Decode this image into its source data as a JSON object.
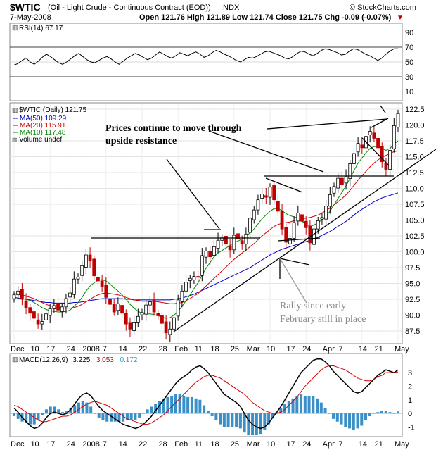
{
  "header": {
    "symbol": "$WTIC",
    "description": "(Oil - Light Crude - Continuous Contract (EOD))",
    "exchange": "INDX",
    "watermark": "© StockCharts.com",
    "date": "7-May-2008",
    "ohlc": "Open 121.76  High 121.89  Low 121.74  Close 121.75  Chg -0.09 (-0.07%)",
    "chg_marker": "▼"
  },
  "rsi": {
    "label": "RSI(14) 67.17",
    "ticks": [
      "90",
      "70",
      "50",
      "30",
      "10"
    ],
    "values": [
      46,
      48,
      52,
      55,
      50,
      47,
      51,
      56,
      60,
      57,
      53,
      49,
      47,
      50,
      54,
      58,
      61,
      57,
      53,
      50,
      49,
      52,
      55,
      57,
      54,
      50,
      47,
      51,
      55,
      58,
      61,
      59,
      56,
      53,
      55,
      59,
      63,
      60,
      57,
      55,
      58,
      62,
      60,
      58,
      61,
      63,
      60,
      56,
      58,
      62,
      65,
      63,
      60,
      58,
      55,
      52,
      50,
      53,
      56,
      55,
      57,
      60,
      63,
      64,
      62,
      60,
      58,
      55,
      54,
      57,
      61,
      64,
      63,
      60,
      58,
      61,
      65,
      67,
      66,
      64,
      62,
      59,
      60,
      64,
      67,
      66,
      63,
      60,
      58,
      55,
      52,
      55,
      60,
      64,
      67,
      67
    ]
  },
  "price_panel": {
    "legend": {
      "title": "$WTIC (Daily) 121.75",
      "ma50": "MA(50) 109.29",
      "ma20": "MA(20) 115.91",
      "ma10": "MA(10) 117.48",
      "volume": "Volume undef"
    },
    "annotations": {
      "resistance_1": "Prices continue to move through",
      "resistance_2": "upside resistance",
      "rally_1": "Rally since early",
      "rally_2": "February still in place"
    },
    "y_ticks": [
      "122.5",
      "120.0",
      "117.5",
      "115.0",
      "112.5",
      "110.0",
      "107.5",
      "105.0",
      "102.5",
      "100.0",
      "97.5",
      "95.0",
      "92.5",
      "90.0",
      "87.5"
    ]
  },
  "x_labels": [
    "Dec",
    "10",
    "17",
    "24",
    "2008",
    "7",
    "14",
    "22",
    "28",
    "Feb",
    "11",
    "18",
    "25",
    "Mar",
    "10",
    "17",
    "24",
    "Apr",
    "7",
    "14",
    "21",
    "May"
  ],
  "macd": {
    "label": "MACD(12,26,9)",
    "macd_value": "3.225,",
    "signal_value": "3.053,",
    "hist_value": "0.172",
    "ticks": [
      "3",
      "2",
      "1",
      "0",
      "-1"
    ],
    "macd_series": [
      0.4,
      0.1,
      -0.3,
      -0.6,
      -0.9,
      -1.1,
      -1.0,
      -0.7,
      -0.3,
      0.0,
      0.1,
      0.0,
      -0.1,
      0.0,
      0.3,
      0.7,
      1.1,
      1.4,
      1.5,
      1.3,
      0.9,
      0.5,
      0.2,
      0.0,
      -0.2,
      -0.4,
      -0.6,
      -0.8,
      -0.9,
      -1.0,
      -1.1,
      -1.0,
      -0.8,
      -0.5,
      -0.2,
      0.2,
      0.6,
      1.0,
      1.4,
      1.8,
      2.2,
      2.5,
      2.7,
      2.9,
      3.2,
      3.4,
      3.5,
      3.3,
      3.0,
      2.6,
      2.2,
      1.8,
      1.4,
      1.2,
      1.0,
      0.8,
      0.5,
      0.0,
      -0.5,
      -0.8,
      -1.0,
      -1.1,
      -1.0,
      -0.7,
      -0.3,
      0.1,
      0.5,
      1.0,
      1.5,
      2.0,
      2.5,
      3.0,
      3.3,
      3.6,
      3.9,
      4.0,
      4.0,
      3.8,
      3.5,
      3.1,
      2.8,
      2.5,
      2.2,
      1.9,
      1.6,
      1.5,
      1.6,
      1.9,
      2.2,
      2.5,
      2.8,
      3.0,
      3.2,
      3.1,
      3.0,
      3.2
    ],
    "signal_series": [
      0.6,
      0.5,
      0.3,
      0.1,
      -0.1,
      -0.3,
      -0.5,
      -0.6,
      -0.6,
      -0.5,
      -0.4,
      -0.3,
      -0.2,
      -0.2,
      -0.1,
      0.1,
      0.3,
      0.5,
      0.7,
      0.8,
      0.9,
      0.8,
      0.7,
      0.6,
      0.4,
      0.2,
      0.0,
      -0.2,
      -0.4,
      -0.5,
      -0.6,
      -0.7,
      -0.8,
      -0.8,
      -0.7,
      -0.5,
      -0.3,
      -0.1,
      0.2,
      0.5,
      0.8,
      1.1,
      1.4,
      1.7,
      2.0,
      2.3,
      2.5,
      2.7,
      2.8,
      2.8,
      2.7,
      2.6,
      2.4,
      2.2,
      2.0,
      1.8,
      1.6,
      1.4,
      1.1,
      0.8,
      0.6,
      0.4,
      0.2,
      0.1,
      0.0,
      0.0,
      0.1,
      0.3,
      0.6,
      0.9,
      1.2,
      1.6,
      2.0,
      2.3,
      2.6,
      2.9,
      3.2,
      3.4,
      3.5,
      3.5,
      3.4,
      3.3,
      3.2,
      3.0,
      2.8,
      2.6,
      2.5,
      2.4,
      2.4,
      2.5,
      2.7,
      2.8,
      3.0,
      3.0,
      3.0,
      3.05
    ]
  },
  "chart_data": {
    "type": "candlestick",
    "title": "$WTIC (Daily) 121.75",
    "ylim": [
      85.5,
      123.5
    ],
    "close": [
      93.2,
      93.8,
      92.5,
      91.2,
      90.3,
      89.5,
      88.6,
      89.0,
      90.2,
      91.0,
      91.5,
      90.8,
      91.3,
      92.6,
      93.5,
      95.7,
      96.0,
      97.8,
      99.5,
      98.6,
      96.2,
      95.4,
      94.5,
      92.8,
      91.7,
      90.5,
      91.8,
      90.3,
      88.6,
      87.8,
      88.9,
      89.8,
      90.4,
      91.6,
      92.1,
      90.5,
      89.9,
      88.7,
      87.2,
      87.8,
      89.6,
      92.4,
      93.8,
      95.2,
      95.8,
      96.1,
      96.0,
      99.4,
      100.1,
      99.2,
      100.8,
      101.8,
      102.2,
      101.2,
      100.3,
      102.6,
      102.0,
      101.2,
      102.8,
      105.3,
      106.6,
      108.2,
      109.1,
      108.6,
      110.2,
      108.2,
      106.4,
      103.6,
      101.5,
      102.1,
      104.6,
      106.1,
      104.8,
      103.8,
      101.4,
      103.6,
      104.9,
      105.4,
      107.2,
      109.0,
      110.3,
      111.6,
      110.6,
      111.8,
      113.9,
      115.5,
      117.1,
      116.4,
      118.2,
      119.0,
      117.9,
      116.4,
      114.2,
      113.0,
      116.0,
      119.9,
      121.8
    ],
    "ma10": [
      92.5,
      92.6,
      92.6,
      92.5,
      92.3,
      92.0,
      91.6,
      91.2,
      90.9,
      90.7,
      90.6,
      90.5,
      90.5,
      90.6,
      90.8,
      91.4,
      92.0,
      92.8,
      93.8,
      94.6,
      95.1,
      95.5,
      95.6,
      95.4,
      94.9,
      94.3,
      93.8,
      93.2,
      92.5,
      91.7,
      91.1,
      90.6,
      90.3,
      90.2,
      90.2,
      90.1,
      89.9,
      89.7,
      89.5,
      89.6,
      90.0,
      90.6,
      91.4,
      92.3,
      93.2,
      94.2,
      95.1,
      96.3,
      97.4,
      98.3,
      99.2,
      99.8,
      100.2,
      100.6,
      101.0,
      101.4,
      101.7,
      102.0,
      102.4,
      103.0,
      103.6,
      104.4,
      105.2,
      105.8,
      106.4,
      106.8,
      106.8,
      106.5,
      106.0,
      105.7,
      105.5,
      105.3,
      104.8,
      104.4,
      104.0,
      104.2,
      104.6,
      105.0,
      105.6,
      106.4,
      107.4,
      108.4,
      109.4,
      110.4,
      111.6,
      112.8,
      114.0,
      114.8,
      115.6,
      116.3,
      116.6,
      116.6,
      116.3,
      116.0,
      116.3,
      117.0,
      117.5
    ],
    "ma20": [
      93.4,
      93.3,
      93.2,
      93.0,
      92.8,
      92.6,
      92.3,
      92.0,
      91.7,
      91.5,
      91.3,
      91.2,
      91.1,
      91.1,
      91.1,
      91.2,
      91.4,
      91.7,
      92.1,
      92.5,
      92.9,
      93.2,
      93.4,
      93.5,
      93.4,
      93.3,
      93.2,
      93.0,
      92.8,
      92.6,
      92.4,
      92.3,
      92.2,
      92.2,
      92.2,
      92.2,
      92.1,
      92.0,
      91.9,
      91.8,
      91.8,
      91.9,
      92.0,
      92.3,
      92.6,
      93.0,
      93.4,
      94.0,
      94.6,
      95.2,
      95.8,
      96.4,
      97.0,
      97.6,
      98.2,
      98.8,
      99.3,
      99.8,
      100.3,
      100.8,
      101.3,
      101.9,
      102.5,
      103.0,
      103.5,
      104.0,
      104.3,
      104.5,
      104.6,
      104.7,
      104.9,
      105.1,
      105.2,
      105.3,
      105.4,
      105.6,
      105.8,
      106.1,
      106.5,
      106.9,
      107.4,
      107.9,
      108.4,
      109.0,
      109.7,
      110.5,
      111.3,
      112.0,
      112.7,
      113.4,
      114.0,
      114.5,
      114.9,
      115.2,
      115.5,
      115.8,
      115.9
    ],
    "ma50": [
      92.8,
      92.7,
      92.6,
      92.5,
      92.4,
      92.3,
      92.2,
      92.1,
      92.0,
      92.0,
      91.9,
      91.9,
      91.9,
      91.9,
      91.9,
      92.0,
      92.0,
      92.1,
      92.2,
      92.3,
      92.4,
      92.5,
      92.6,
      92.6,
      92.6,
      92.6,
      92.6,
      92.6,
      92.5,
      92.5,
      92.4,
      92.4,
      92.4,
      92.4,
      92.4,
      92.4,
      92.4,
      92.4,
      92.4,
      92.4,
      92.5,
      92.6,
      92.7,
      92.9,
      93.1,
      93.3,
      93.6,
      93.9,
      94.2,
      94.5,
      94.8,
      95.1,
      95.4,
      95.7,
      96.0,
      96.3,
      96.6,
      96.9,
      97.2,
      97.5,
      97.9,
      98.3,
      98.7,
      99.1,
      99.5,
      99.8,
      100.1,
      100.4,
      100.6,
      100.8,
      101.0,
      101.2,
      101.4,
      101.6,
      101.8,
      102.0,
      102.3,
      102.6,
      102.9,
      103.2,
      103.6,
      104.0,
      104.4,
      104.8,
      105.3,
      105.8,
      106.3,
      106.7,
      107.1,
      107.5,
      107.9,
      108.2,
      108.5,
      108.7,
      108.9,
      109.1,
      109.3
    ]
  }
}
